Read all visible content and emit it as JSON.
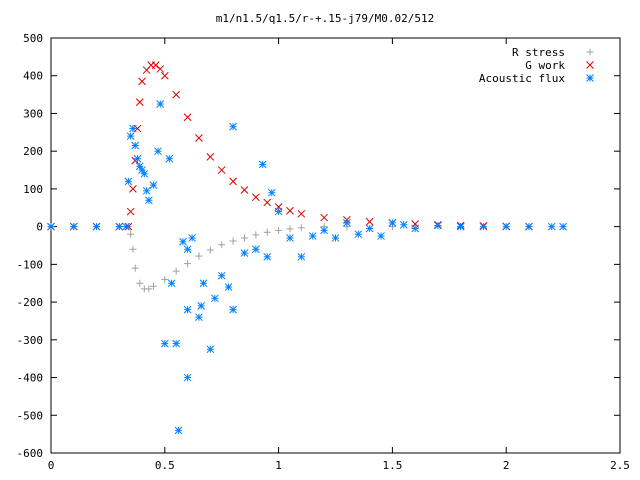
{
  "chart_data": {
    "type": "scatter",
    "title": "m1/n1.5/q1.5/r-+.15-j79/M0.02/512",
    "xlabel": "",
    "ylabel": "",
    "xlim": [
      0,
      2.5
    ],
    "ylim": [
      -600,
      500
    ],
    "xticks": [
      "0",
      "0.5",
      "1",
      "1.5",
      "2",
      "2.5"
    ],
    "yticks": [
      "500",
      "400",
      "300",
      "200",
      "100",
      "0",
      "-100",
      "-200",
      "-300",
      "-400",
      "-500",
      "-600"
    ],
    "grid": false,
    "legend_position": "top-right",
    "series": [
      {
        "name": "R stress",
        "marker": "plus",
        "color": "#a0a0a0",
        "points": [
          [
            0.0,
            0
          ],
          [
            0.1,
            0
          ],
          [
            0.2,
            0
          ],
          [
            0.3,
            0
          ],
          [
            0.34,
            0
          ],
          [
            0.35,
            -20
          ],
          [
            0.36,
            -60
          ],
          [
            0.37,
            -110
          ],
          [
            0.39,
            -150
          ],
          [
            0.41,
            -165
          ],
          [
            0.43,
            -165
          ],
          [
            0.45,
            -158
          ],
          [
            0.5,
            -140
          ],
          [
            0.55,
            -118
          ],
          [
            0.6,
            -98
          ],
          [
            0.65,
            -78
          ],
          [
            0.7,
            -62
          ],
          [
            0.75,
            -48
          ],
          [
            0.8,
            -38
          ],
          [
            0.85,
            -30
          ],
          [
            0.9,
            -22
          ],
          [
            0.95,
            -15
          ],
          [
            1.0,
            -10
          ],
          [
            1.05,
            -6
          ],
          [
            1.1,
            -3
          ],
          [
            1.2,
            0
          ],
          [
            1.3,
            0
          ],
          [
            1.5,
            0
          ],
          [
            1.8,
            0
          ],
          [
            2.1,
            0
          ]
        ]
      },
      {
        "name": "G work",
        "marker": "cross",
        "color": "#e00000",
        "points": [
          [
            0.0,
            0
          ],
          [
            0.1,
            0
          ],
          [
            0.2,
            0
          ],
          [
            0.3,
            0
          ],
          [
            0.34,
            0
          ],
          [
            0.35,
            40
          ],
          [
            0.36,
            100
          ],
          [
            0.37,
            175
          ],
          [
            0.38,
            260
          ],
          [
            0.39,
            330
          ],
          [
            0.4,
            385
          ],
          [
            0.42,
            415
          ],
          [
            0.44,
            428
          ],
          [
            0.46,
            428
          ],
          [
            0.48,
            418
          ],
          [
            0.5,
            400
          ],
          [
            0.55,
            350
          ],
          [
            0.6,
            290
          ],
          [
            0.65,
            235
          ],
          [
            0.7,
            185
          ],
          [
            0.75,
            150
          ],
          [
            0.8,
            120
          ],
          [
            0.85,
            97
          ],
          [
            0.9,
            78
          ],
          [
            0.95,
            64
          ],
          [
            1.0,
            52
          ],
          [
            1.05,
            42
          ],
          [
            1.1,
            34
          ],
          [
            1.2,
            24
          ],
          [
            1.3,
            18
          ],
          [
            1.4,
            13
          ],
          [
            1.5,
            10
          ],
          [
            1.6,
            7
          ],
          [
            1.7,
            5
          ],
          [
            1.8,
            3
          ],
          [
            1.9,
            2
          ],
          [
            2.0,
            1
          ],
          [
            2.1,
            0
          ]
        ]
      },
      {
        "name": "Acoustic flux",
        "marker": "star",
        "color": "#0080ff",
        "points": [
          [
            0.0,
            0
          ],
          [
            0.1,
            0
          ],
          [
            0.2,
            0
          ],
          [
            0.3,
            0
          ],
          [
            0.33,
            0
          ],
          [
            0.34,
            120
          ],
          [
            0.35,
            240
          ],
          [
            0.36,
            260
          ],
          [
            0.37,
            215
          ],
          [
            0.38,
            180
          ],
          [
            0.39,
            160
          ],
          [
            0.4,
            150
          ],
          [
            0.41,
            140
          ],
          [
            0.42,
            95
          ],
          [
            0.43,
            70
          ],
          [
            0.45,
            110
          ],
          [
            0.47,
            200
          ],
          [
            0.48,
            325
          ],
          [
            0.5,
            -310
          ],
          [
            0.52,
            180
          ],
          [
            0.53,
            -150
          ],
          [
            0.55,
            -310
          ],
          [
            0.56,
            -540
          ],
          [
            0.58,
            -40
          ],
          [
            0.6,
            -60
          ],
          [
            0.62,
            -30
          ],
          [
            0.6,
            -220
          ],
          [
            0.65,
            -240
          ],
          [
            0.66,
            -210
          ],
          [
            0.7,
            -325
          ],
          [
            0.6,
            -400
          ],
          [
            0.67,
            -150
          ],
          [
            0.72,
            -190
          ],
          [
            0.75,
            -130
          ],
          [
            0.78,
            -160
          ],
          [
            0.8,
            -220
          ],
          [
            0.8,
            265
          ],
          [
            0.85,
            -70
          ],
          [
            0.9,
            -60
          ],
          [
            0.95,
            -80
          ],
          [
            0.93,
            165
          ],
          [
            0.97,
            90
          ],
          [
            1.0,
            40
          ],
          [
            1.05,
            -30
          ],
          [
            1.1,
            -80
          ],
          [
            1.15,
            -25
          ],
          [
            1.2,
            -10
          ],
          [
            1.25,
            -30
          ],
          [
            1.3,
            10
          ],
          [
            1.35,
            -20
          ],
          [
            1.4,
            -5
          ],
          [
            1.45,
            -25
          ],
          [
            1.5,
            10
          ],
          [
            1.55,
            5
          ],
          [
            1.6,
            -5
          ],
          [
            1.7,
            3
          ],
          [
            1.8,
            0
          ],
          [
            1.9,
            0
          ],
          [
            2.0,
            0
          ],
          [
            2.1,
            0
          ],
          [
            2.2,
            0
          ],
          [
            2.25,
            0
          ]
        ]
      }
    ]
  }
}
